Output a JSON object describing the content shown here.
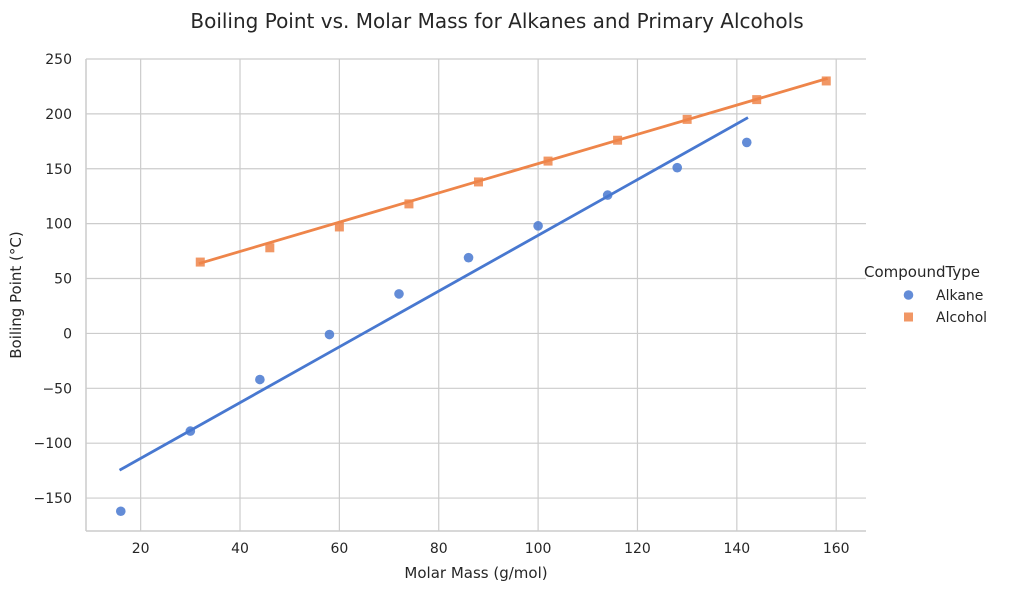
{
  "chart_data": {
    "type": "scatter",
    "title": "Boiling Point vs. Molar Mass for Alkanes and Primary Alcohols",
    "xlabel": "Molar Mass (g/mol)",
    "ylabel": "Boiling Point (°C)",
    "xlim": [
      9,
      166
    ],
    "ylim": [
      -180,
      250
    ],
    "xticks": [
      20,
      40,
      60,
      80,
      100,
      120,
      140,
      160
    ],
    "yticks": [
      -150,
      -100,
      -50,
      0,
      50,
      100,
      150,
      200,
      250
    ],
    "xtick_labels": [
      "20",
      "40",
      "60",
      "80",
      "100",
      "120",
      "140",
      "160"
    ],
    "ytick_labels": [
      "−150",
      "−100",
      "−50",
      "0",
      "50",
      "100",
      "150",
      "200",
      "250"
    ],
    "grid": true,
    "legend": {
      "title": "CompoundType",
      "placement": "right"
    },
    "series": [
      {
        "name": "Alkane",
        "marker": "circle",
        "color": "#4878d0",
        "x": [
          16,
          30,
          44,
          58,
          72,
          86,
          100,
          114,
          128,
          142
        ],
        "y": [
          -162,
          -89,
          -42,
          -1,
          36,
          69,
          98,
          126,
          151,
          174
        ],
        "fit": {
          "x": [
            16,
            142
          ],
          "y": [
            -124,
            196
          ]
        }
      },
      {
        "name": "Alcohol",
        "marker": "square",
        "color": "#ee854a",
        "x": [
          32,
          46,
          60,
          74,
          88,
          102,
          116,
          130,
          144,
          158
        ],
        "y": [
          65,
          78,
          97,
          118,
          138,
          157,
          176,
          195,
          213,
          230
        ],
        "fit": {
          "x": [
            32,
            158
          ],
          "y": [
            64,
            232
          ]
        }
      }
    ]
  }
}
